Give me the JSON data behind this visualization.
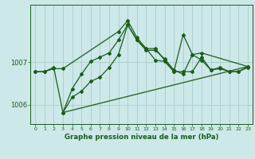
{
  "bg_color": "#cce8e8",
  "grid_color": "#aacccc",
  "line_color": "#1a5c1a",
  "title": "Graphe pression niveau de la mer (hPa)",
  "xlim": [
    -0.5,
    23.5
  ],
  "ylim": [
    1005.55,
    1008.35
  ],
  "yticks": [
    1006,
    1007
  ],
  "xticks": [
    0,
    1,
    2,
    3,
    4,
    5,
    6,
    7,
    8,
    9,
    10,
    11,
    12,
    13,
    14,
    15,
    16,
    17,
    18,
    19,
    20,
    21,
    22,
    23
  ],
  "series": [
    {
      "x": [
        0,
        1,
        2,
        3,
        4,
        5,
        6,
        7,
        8,
        9,
        10,
        11,
        12,
        13,
        14,
        15,
        16,
        17,
        18,
        19,
        20,
        21,
        22,
        23
      ],
      "y": [
        1006.78,
        1006.78,
        1006.88,
        1005.82,
        1006.38,
        1006.72,
        1007.02,
        1007.12,
        1007.22,
        1007.52,
        1007.88,
        1007.52,
        1007.32,
        1007.32,
        1007.05,
        1006.78,
        1006.78,
        1006.78,
        1007.12,
        1006.82,
        1006.88,
        1006.78,
        1006.78,
        1006.88
      ],
      "marker": "D",
      "markersize": 2.0,
      "linewidth": 0.9
    },
    {
      "x": [
        0,
        1,
        2,
        3,
        9,
        10,
        11,
        12,
        13,
        14,
        15,
        16,
        17,
        18,
        23
      ],
      "y": [
        1006.78,
        1006.78,
        1006.85,
        1006.85,
        1007.72,
        1007.98,
        1007.58,
        1007.32,
        1007.05,
        1007.02,
        1006.78,
        1007.65,
        1007.18,
        1007.22,
        1006.9
      ],
      "marker": "D",
      "markersize": 2.0,
      "linewidth": 0.9
    },
    {
      "x": [
        3,
        4,
        5,
        6,
        7,
        8,
        9,
        10,
        11,
        12,
        13,
        14,
        15,
        16,
        17,
        18,
        19,
        20,
        21,
        22,
        23
      ],
      "y": [
        1005.82,
        1006.18,
        1006.32,
        1006.55,
        1006.65,
        1006.88,
        1007.18,
        1007.88,
        1007.52,
        1007.28,
        1007.28,
        1007.08,
        1006.82,
        1006.72,
        1007.18,
        1007.05,
        1006.82,
        1006.85,
        1006.78,
        1006.78,
        1006.9
      ],
      "marker": "D",
      "markersize": 2.0,
      "linewidth": 0.9
    },
    {
      "x": [
        3,
        23
      ],
      "y": [
        1005.82,
        1006.9
      ],
      "marker": null,
      "markersize": 0,
      "linewidth": 0.9
    }
  ]
}
